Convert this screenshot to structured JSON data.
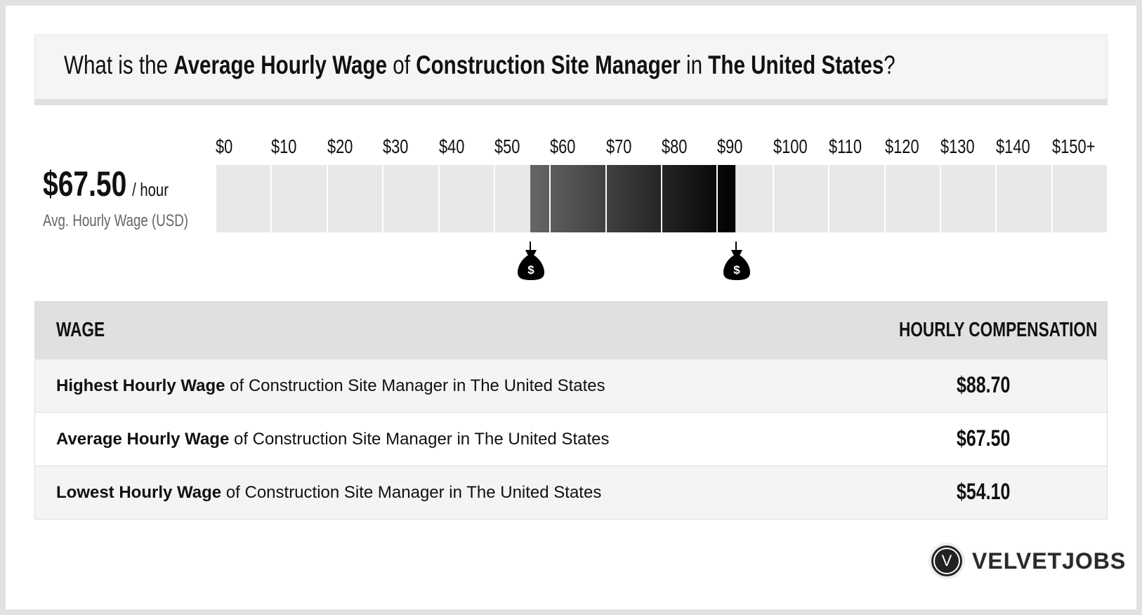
{
  "title": {
    "p1": "What is the ",
    "b1": "Average Hourly Wage",
    "p2": " of ",
    "b2": "Construction Site Manager",
    "p3": " in ",
    "b3": "The United States",
    "p4": "?"
  },
  "summary": {
    "value": "$67.50",
    "unit": "/ hour",
    "label": "Avg. Hourly Wage (USD)"
  },
  "scale": {
    "ticks": [
      "$0",
      "$10",
      "$20",
      "$30",
      "$40",
      "$50",
      "$60",
      "$70",
      "$80",
      "$90",
      "$100",
      "$110",
      "$120",
      "$130",
      "$140",
      "$150+"
    ],
    "range_low": 54.1,
    "range_high": 88.7,
    "marker_icon": "money-bag-icon",
    "fill_start": "#666666",
    "fill_end": "#000000",
    "empty_color": "#e8e8e8"
  },
  "table": {
    "headers": [
      "WAGE",
      "HOURLY COMPENSATION"
    ],
    "rows": [
      {
        "bold": "Highest Hourly Wage",
        "rest": " of Construction Site Manager in The United States",
        "value": "$88.70"
      },
      {
        "bold": "Average Hourly Wage",
        "rest": " of Construction Site Manager in The United States",
        "value": "$67.50"
      },
      {
        "bold": "Lowest Hourly Wage",
        "rest": " of Construction Site Manager in The United States",
        "value": "$54.10"
      }
    ]
  },
  "logo": {
    "mark": "V",
    "text": "VELVETJOBS"
  }
}
